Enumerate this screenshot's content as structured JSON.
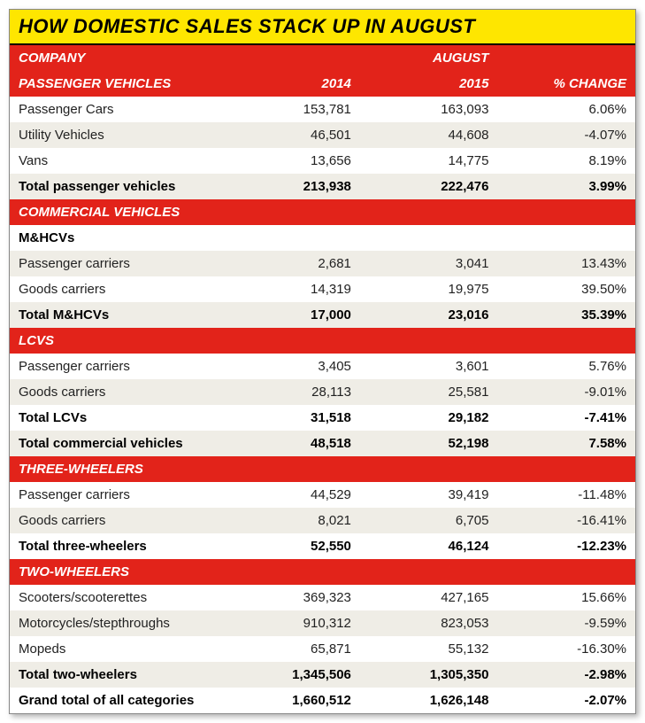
{
  "title": "HOW DOMESTIC SALES STACK UP IN AUGUST",
  "colors": {
    "title_bg": "#fee600",
    "header_bg": "#e2231a",
    "header_fg": "#ffffff",
    "row_bg": "#ffffff",
    "row_alt_bg": "#efede6",
    "text": "#222222",
    "border": "#888888"
  },
  "typography": {
    "title_fontsize": 22,
    "header_fontsize": 15,
    "cell_fontsize": 15,
    "title_weight": 900,
    "header_weight": 900
  },
  "columns": {
    "company": "COMPANY",
    "period": "AUGUST",
    "y2014": "2014",
    "y2015": "2015",
    "pct": "% CHANGE"
  },
  "sections": {
    "pv": {
      "header": "PASSENGER VEHICLES",
      "rows": [
        {
          "label": "Passenger Cars",
          "y2014": "153,781",
          "y2015": "163,093",
          "pct": "6.06%"
        },
        {
          "label": "Utility Vehicles",
          "y2014": "46,501",
          "y2015": "44,608",
          "pct": "-4.07%"
        },
        {
          "label": "Vans",
          "y2014": "13,656",
          "y2015": "14,775",
          "pct": "8.19%"
        }
      ],
      "total": {
        "label": "Total passenger vehicles",
        "y2014": "213,938",
        "y2015": "222,476",
        "pct": "3.99%"
      }
    },
    "cv": {
      "header": "COMMERCIAL VEHICLES",
      "mhcv": {
        "subhead": "M&HCVs",
        "rows": [
          {
            "label": "Passenger carriers",
            "y2014": "2,681",
            "y2015": "3,041",
            "pct": "13.43%"
          },
          {
            "label": "Goods carriers",
            "y2014": "14,319",
            "y2015": "19,975",
            "pct": "39.50%"
          }
        ],
        "total": {
          "label": "Total M&HCVs",
          "y2014": "17,000",
          "y2015": "23,016",
          "pct": "35.39%"
        }
      },
      "lcv": {
        "subhead": "LCVS",
        "rows": [
          {
            "label": "Passenger carriers",
            "y2014": "3,405",
            "y2015": "3,601",
            "pct": "5.76%"
          },
          {
            "label": "Goods carriers",
            "y2014": "28,113",
            "y2015": "25,581",
            "pct": "-9.01%"
          }
        ],
        "total": {
          "label": "Total LCVs",
          "y2014": "31,518",
          "y2015": "29,182",
          "pct": "-7.41%"
        }
      },
      "total": {
        "label": "Total commercial vehicles",
        "y2014": "48,518",
        "y2015": "52,198",
        "pct": "7.58%"
      }
    },
    "tw3": {
      "header": "THREE-WHEELERS",
      "rows": [
        {
          "label": "Passenger carriers",
          "y2014": "44,529",
          "y2015": "39,419",
          "pct": "-11.48%"
        },
        {
          "label": "Goods carriers",
          "y2014": "8,021",
          "y2015": "6,705",
          "pct": "-16.41%"
        }
      ],
      "total": {
        "label": "Total three-wheelers",
        "y2014": "52,550",
        "y2015": "46,124",
        "pct": "-12.23%"
      }
    },
    "tw2": {
      "header": "TWO-WHEELERS",
      "rows": [
        {
          "label": "Scooters/scooterettes",
          "y2014": "369,323",
          "y2015": "427,165",
          "pct": "15.66%"
        },
        {
          "label": "Motorcycles/stepthroughs",
          "y2014": "910,312",
          "y2015": "823,053",
          "pct": "-9.59%"
        },
        {
          "label": "Mopeds",
          "y2014": "65,871",
          "y2015": "55,132",
          "pct": "-16.30%"
        }
      ],
      "total": {
        "label": "Total two-wheelers",
        "y2014": "1,345,506",
        "y2015": "1,305,350",
        "pct": "-2.98%"
      }
    },
    "grand": {
      "label": "Grand total of all categories",
      "y2014": "1,660,512",
      "y2015": "1,626,148",
      "pct": "-2.07%"
    }
  }
}
